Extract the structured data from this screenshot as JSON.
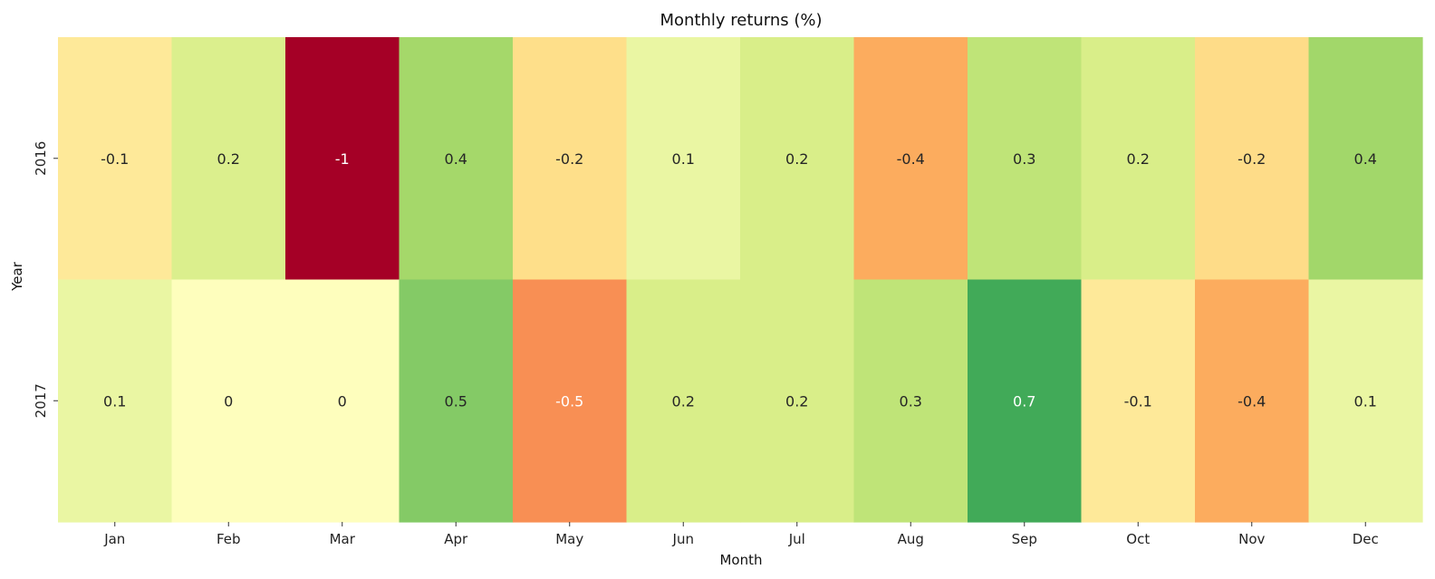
{
  "chart_data": {
    "type": "heatmap",
    "title": "Monthly returns (%)",
    "xlabel": "Month",
    "ylabel": "Year",
    "x_categories": [
      "Jan",
      "Feb",
      "Mar",
      "Apr",
      "May",
      "Jun",
      "Jul",
      "Aug",
      "Sep",
      "Oct",
      "Nov",
      "Dec"
    ],
    "y_categories": [
      "2016",
      "2017"
    ],
    "values": [
      [
        -0.1,
        0.2,
        -1,
        0.4,
        -0.2,
        0.1,
        0.2,
        -0.4,
        0.3,
        0.2,
        -0.2,
        0.4
      ],
      [
        0.1,
        0,
        0,
        0.5,
        -0.5,
        0.2,
        0.2,
        0.3,
        0.7,
        -0.1,
        -0.4,
        0.1
      ]
    ],
    "labels": [
      [
        "-0.1",
        "0.2",
        "-1",
        "0.4",
        "-0.2",
        "0.1",
        "0.2",
        "-0.4",
        "0.3",
        "0.2",
        "-0.2",
        "0.4"
      ],
      [
        "0.1",
        "0",
        "0",
        "0.5",
        "-0.5",
        "0.2",
        "0.2",
        "0.3",
        "0.7",
        "-0.1",
        "-0.4",
        "0.1"
      ]
    ],
    "colormap": "RdYlGn",
    "vmin": -1,
    "vmax": 1,
    "colorbar": false,
    "colors": [
      [
        "#fee999",
        "#dbef8d",
        "#a50026",
        "#a5d86a",
        "#fedf8a",
        "#eaf6a3",
        "#d9ee89",
        "#fcac5e",
        "#bfe478",
        "#d9ee89",
        "#fedc88",
        "#a2d76a"
      ],
      [
        "#eaf6a3",
        "#fefebd",
        "#fefebd",
        "#84ca66",
        "#f88f54",
        "#d9ee89",
        "#d9ee89",
        "#bfe478",
        "#41aa58",
        "#fee999",
        "#fcac5e",
        "#eaf6a3"
      ]
    ],
    "text_colors": [
      [
        "#262626",
        "#262626",
        "#ffffff",
        "#262626",
        "#262626",
        "#262626",
        "#262626",
        "#262626",
        "#262626",
        "#262626",
        "#262626",
        "#262626"
      ],
      [
        "#262626",
        "#262626",
        "#262626",
        "#262626",
        "#ffffff",
        "#262626",
        "#262626",
        "#262626",
        "#ffffff",
        "#262626",
        "#262626",
        "#262626"
      ]
    ]
  }
}
